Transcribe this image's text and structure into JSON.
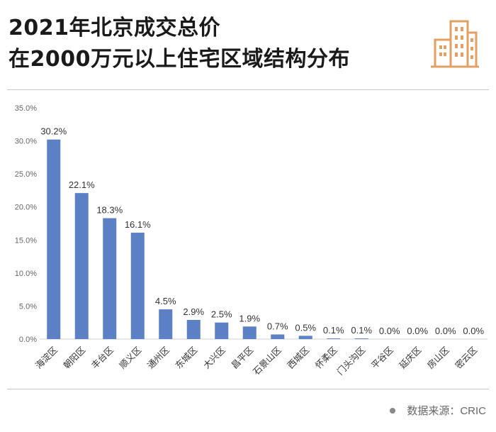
{
  "header": {
    "title_line1": "2021年北京成交总价",
    "title_line2": "在2000万元以上住宅区域结构分布"
  },
  "logo": {
    "icon": "buildings-icon",
    "color": "#e3a062"
  },
  "footer": {
    "source_text": "数据来源：CRIC"
  },
  "chart_data": {
    "type": "bar",
    "categories": [
      "海淀区",
      "朝阳区",
      "丰台区",
      "顺义区",
      "通州区",
      "东城区",
      "大兴区",
      "昌平区",
      "石景山区",
      "西城区",
      "怀柔区",
      "门头沟区",
      "平谷区",
      "延庆区",
      "房山区",
      "密云区"
    ],
    "values": [
      30.2,
      22.1,
      18.3,
      16.1,
      4.5,
      2.9,
      2.5,
      1.9,
      0.7,
      0.5,
      0.1,
      0.1,
      0.0,
      0.0,
      0.0,
      0.0
    ],
    "value_labels": [
      "30.2%",
      "22.1%",
      "18.3%",
      "16.1%",
      "4.5%",
      "2.9%",
      "2.5%",
      "1.9%",
      "0.7%",
      "0.5%",
      "0.1%",
      "0.1%",
      "0.0%",
      "0.0%",
      "0.0%",
      "0.0%"
    ],
    "yticks": [
      "0.0%",
      "5.0%",
      "10.0%",
      "15.0%",
      "20.0%",
      "25.0%",
      "30.0%",
      "35.0%"
    ],
    "ylim": [
      0,
      35
    ],
    "grid": false,
    "bar_color": "#5b80c4"
  }
}
